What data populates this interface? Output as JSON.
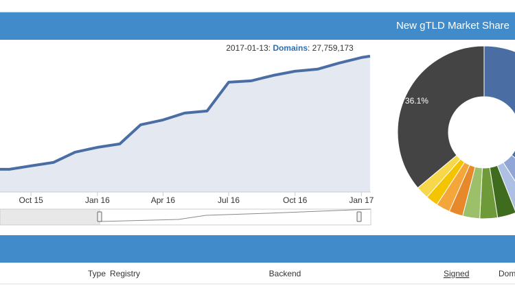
{
  "header": {
    "title": "New gTLD Market Share"
  },
  "chart_data": [
    {
      "type": "area",
      "x": [
        "2015-09",
        "2015-10",
        "2015-11",
        "2015-12",
        "2016-01",
        "2016-02",
        "2016-03",
        "2016-04",
        "2016-05",
        "2016-06",
        "2016-07",
        "2016-08",
        "2016-09",
        "2016-10",
        "2016-11",
        "2016-12",
        "2017-01",
        "2017-01-13"
      ],
      "series": [
        {
          "name": "Domains",
          "color": "#4a6ea3",
          "values": [
            7140000,
            7760000,
            8390000,
            10260000,
            11140000,
            11760000,
            15260000,
            16140000,
            17390000,
            17760000,
            23010000,
            23260000,
            24260000,
            25010000,
            25390000,
            26510000,
            27510000,
            27759173
          ],
          "value_labels": [
            null,
            null,
            null,
            null,
            null,
            null,
            null,
            null,
            null,
            null,
            null,
            null,
            null,
            null,
            null,
            null,
            null,
            "27,759,173"
          ]
        }
      ],
      "xlim": [
        "2015-08-19",
        "2017-01-14"
      ],
      "ylim": [
        3000000,
        30500000
      ],
      "xticks": [
        {
          "value": "2015-10",
          "label": "Oct 15"
        },
        {
          "value": "2016-01",
          "label": "Jan 16"
        },
        {
          "value": "2016-04",
          "label": "Apr 16"
        },
        {
          "value": "2016-07",
          "label": "Jul 16"
        },
        {
          "value": "2016-10",
          "label": "Oct 16"
        },
        {
          "value": "2017-01",
          "label": "Jan 17"
        }
      ]
    },
    {
      "type": "pie",
      "values": [
        36,
        5,
        3,
        3.5,
        3.3,
        3.2,
        2.6,
        2.6,
        2.3,
        2.4,
        36.1
      ],
      "colors": [
        "#4a6ea3",
        "#8fa6d6",
        "#aebfe4",
        "#3f6b1f",
        "#6f9a3a",
        "#9cc06a",
        "#e6892a",
        "#f4a63a",
        "#f5c400",
        "#f7d84a",
        "#444444"
      ],
      "value_labels": [
        null,
        null,
        null,
        null,
        null,
        null,
        null,
        null,
        null,
        null,
        "36.1%"
      ]
    }
  ],
  "table": {
    "columns": [
      "Type",
      "Registry",
      "Backend",
      "Signed",
      "Dom"
    ]
  }
}
